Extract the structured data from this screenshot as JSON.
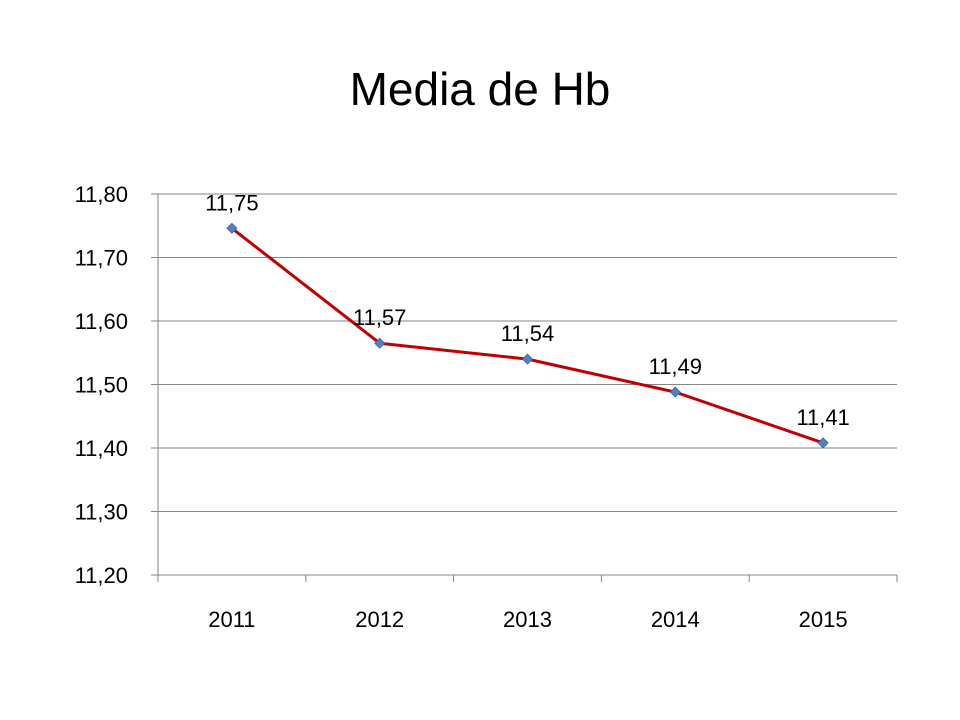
{
  "chart_data": {
    "type": "line",
    "title": "Media de Hb",
    "categories": [
      "2011",
      "2012",
      "2013",
      "2014",
      "2015"
    ],
    "series": [
      {
        "values": [
          11.746,
          11.565,
          11.54,
          11.488,
          11.408
        ],
        "labels": [
          "11,75",
          "11,57",
          "11,54",
          "11,49",
          "11,41"
        ]
      }
    ],
    "ylim": [
      11.2,
      11.8
    ],
    "yticks": [
      11.8,
      11.7,
      11.6,
      11.5,
      11.4,
      11.3,
      11.2
    ],
    "ytick_labels": [
      "11,80",
      "11,70",
      "11,60",
      "11,50",
      "11,40",
      "11,30",
      "11,20"
    ],
    "xlabel": "",
    "ylabel": "",
    "grid": true,
    "legend": "none",
    "colors": {
      "line": "#c00000",
      "marker": "#4f81bd",
      "grid": "#868686",
      "axis": "#868686"
    }
  }
}
